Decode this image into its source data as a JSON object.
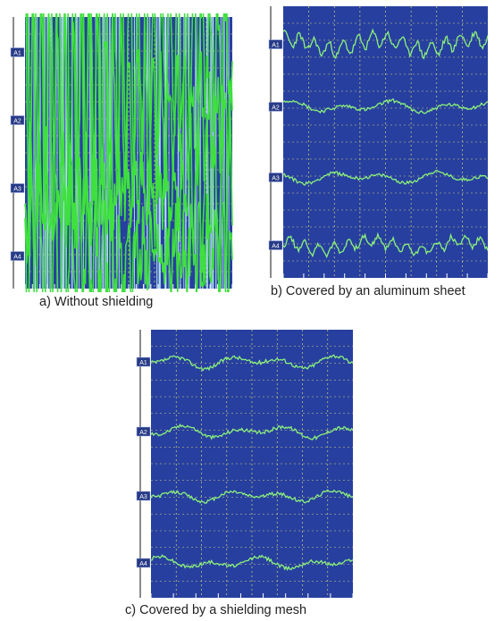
{
  "figure": {
    "captions": {
      "a": "a) Without shielding",
      "b": "b) Covered by an aluminum sheet",
      "c": "c) Covered by a shielding mesh"
    }
  },
  "colors": {
    "background": "#27409f",
    "grid": "#d9d27a",
    "trace": "#8cf07a",
    "trace_bright": "#3fe03f",
    "spike": "#bfe9ff",
    "label_bg": "#273a86",
    "label_text": "#ffffff",
    "axis_bar": "#8a8a8a"
  },
  "chart_data": [
    {
      "type": "line",
      "panel": "a",
      "title": "",
      "channels": [
        "A1",
        "A2",
        "A3",
        "A4"
      ],
      "description": "Four EEG channels saturated by dense high-amplitude noise",
      "series": [
        {
          "name": "A1",
          "amplitude": 0.95,
          "noise": "high"
        },
        {
          "name": "A2",
          "amplitude": 0.95,
          "noise": "high"
        },
        {
          "name": "A3",
          "amplitude": 0.95,
          "noise": "high"
        },
        {
          "name": "A4",
          "amplitude": 0.95,
          "noise": "high"
        }
      ]
    },
    {
      "type": "line",
      "panel": "b",
      "title": "",
      "channels": [
        "A1",
        "A2",
        "A3",
        "A4"
      ],
      "series": [
        {
          "name": "A1",
          "amplitude": 0.55,
          "noise": "moderate"
        },
        {
          "name": "A2",
          "amplitude": 0.3,
          "noise": "low"
        },
        {
          "name": "A3",
          "amplitude": 0.28,
          "noise": "low"
        },
        {
          "name": "A4",
          "amplitude": 0.45,
          "noise": "moderate"
        }
      ]
    },
    {
      "type": "line",
      "panel": "c",
      "title": "",
      "channels": [
        "A1",
        "A2",
        "A3",
        "A4"
      ],
      "series": [
        {
          "name": "A1",
          "amplitude": 0.32,
          "noise": "low"
        },
        {
          "name": "A2",
          "amplitude": 0.3,
          "noise": "low"
        },
        {
          "name": "A3",
          "amplitude": 0.28,
          "noise": "low"
        },
        {
          "name": "A4",
          "amplitude": 0.3,
          "noise": "low"
        }
      ]
    }
  ]
}
